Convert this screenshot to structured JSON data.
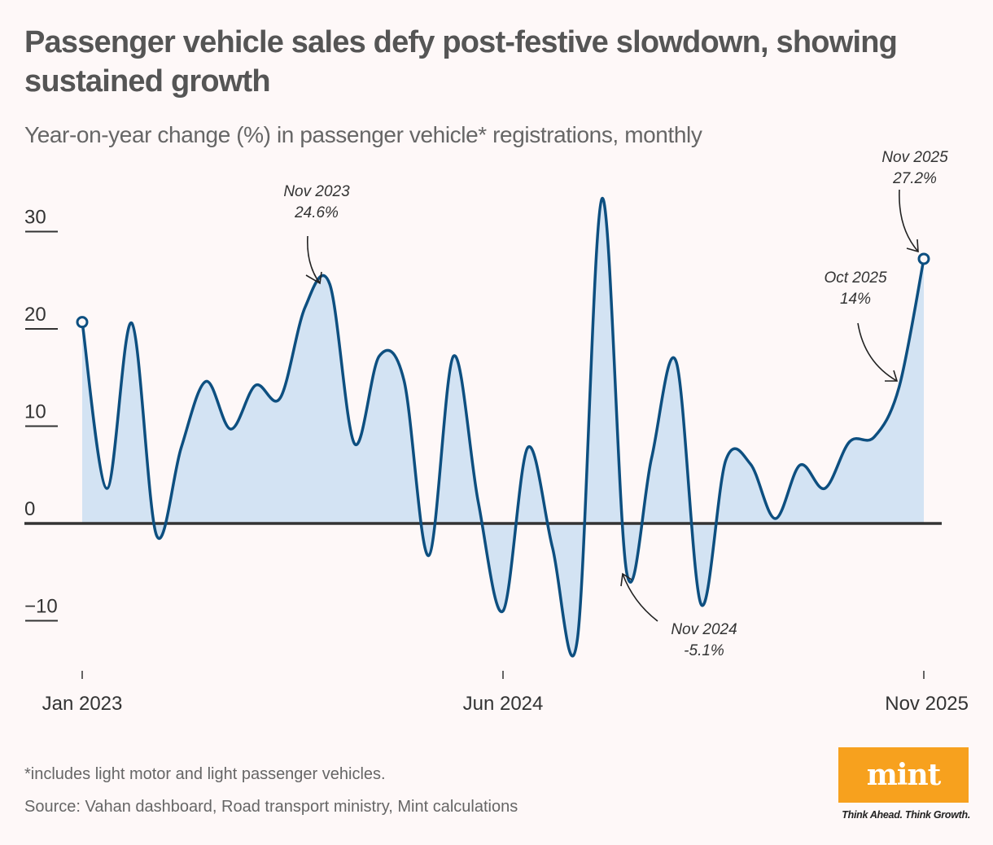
{
  "header": {
    "title": "Passenger vehicle sales defy post-festive slowdown, showing sustained growth",
    "subtitle": "Year-on-year change (%) in passenger vehicle* registrations, monthly"
  },
  "chart_data": {
    "type": "area",
    "title": "Passenger vehicle sales defy post-festive slowdown, showing sustained growth",
    "subtitle": "Year-on-year change (%) in passenger vehicle* registrations, monthly",
    "xlabel": "",
    "ylabel": "Year-on-year change (%)",
    "ylim": [
      -14,
      34
    ],
    "yticks": [
      {
        "value": 30,
        "label": "30"
      },
      {
        "value": 20,
        "label": "20"
      },
      {
        "value": 10,
        "label": "10"
      },
      {
        "value": 0,
        "label": "0"
      },
      {
        "value": -10,
        "label": "−10"
      }
    ],
    "xticks": [
      {
        "index": 0,
        "label": "Jan 2023"
      },
      {
        "index": 17,
        "label": "Jun 2024"
      },
      {
        "index": 34,
        "label": "Nov 2025"
      }
    ],
    "grid": false,
    "x": [
      "Jan 2023",
      "Feb 2023",
      "Mar 2023",
      "Apr 2023",
      "May 2023",
      "Jun 2023",
      "Jul 2023",
      "Aug 2023",
      "Sep 2023",
      "Oct 2023",
      "Nov 2023",
      "Dec 2023",
      "Jan 2024",
      "Feb 2024",
      "Mar 2024",
      "Apr 2024",
      "May 2024",
      "Jun 2024",
      "Jul 2024",
      "Aug 2024",
      "Sep 2024",
      "Oct 2024",
      "Nov 2024",
      "Dec 2024",
      "Jan 2025",
      "Feb 2025",
      "Mar 2025",
      "Apr 2025",
      "May 2025",
      "Jun 2025",
      "Jul 2025",
      "Aug 2025",
      "Sep 2025",
      "Oct 2025",
      "Nov 2025"
    ],
    "series": [
      {
        "name": "YoY change (%)",
        "color": "#0d4f80",
        "fill": "#d3e3f3",
        "values": [
          20.7,
          3.6,
          20.6,
          -1.2,
          7.8,
          14.6,
          9.7,
          14.2,
          12.9,
          22.2,
          24.6,
          8.2,
          17.2,
          14.7,
          -3.3,
          17.2,
          2.2,
          -9.0,
          7.8,
          -2.5,
          -12.0,
          33.4,
          -5.1,
          6.7,
          16.6,
          -8.3,
          6.5,
          6.1,
          0.5,
          6.0,
          3.6,
          8.4,
          8.9,
          14.0,
          27.2
        ]
      }
    ],
    "markers": [
      {
        "index": 0,
        "shape": "open-circle"
      },
      {
        "index": 34,
        "shape": "open-circle"
      }
    ],
    "annotations": [
      {
        "index": 10,
        "label": "Nov 2023",
        "value_label": "24.6%",
        "position": "above"
      },
      {
        "index": 22,
        "label": "Nov 2024",
        "value_label": "-5.1%",
        "position": "below-right"
      },
      {
        "index": 33,
        "label": "Oct 2025",
        "value_label": "14%",
        "position": "above-left"
      },
      {
        "index": 34,
        "label": "Nov 2025",
        "value_label": "27.2%",
        "position": "above"
      }
    ],
    "legend": "none"
  },
  "footer": {
    "footnote": "*includes light motor and light passenger vehicles.",
    "source": "Source: Vahan dashboard, Road transport ministry, Mint calculations"
  },
  "brand": {
    "logo_text": "mint",
    "tagline": "Think Ahead. Think Growth.",
    "logo_color": "#f7a11e"
  }
}
